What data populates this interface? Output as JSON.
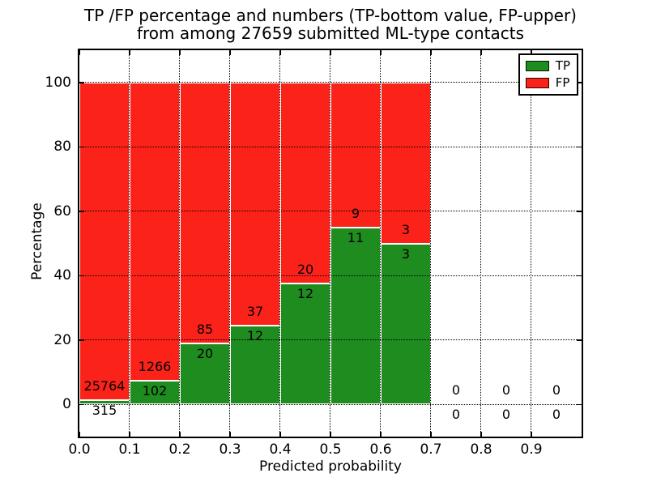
{
  "title": {
    "line1": "TP /FP percentage and numbers (TP-bottom value, FP-upper)",
    "line2": "from among 27659 submitted ML-type contacts"
  },
  "axes": {
    "xlabel": "Predicted probability",
    "ylabel": "Percentage"
  },
  "legend": {
    "position": "upper-right",
    "items": [
      {
        "label": "TP",
        "color": "#1f8c1f"
      },
      {
        "label": "FP",
        "color": "#fb2219"
      }
    ]
  },
  "chart_data": {
    "type": "bar",
    "stacked": true,
    "title": "TP /FP percentage and numbers (TP-bottom value, FP-upper) from among 27659 submitted ML-type contacts",
    "xlabel": "Predicted probability",
    "ylabel": "Percentage",
    "xlim": [
      0.0,
      1.0
    ],
    "ylim": [
      -10,
      110
    ],
    "xticks": [
      "0.0",
      "0.1",
      "0.2",
      "0.3",
      "0.4",
      "0.5",
      "0.6",
      "0.7",
      "0.8",
      "0.9"
    ],
    "yticks": [
      0,
      20,
      40,
      60,
      80,
      100
    ],
    "grid": "dotted",
    "total_submitted": 27659,
    "series": [
      {
        "name": "TP",
        "color": "#1f8c1f",
        "position": "bottom"
      },
      {
        "name": "FP",
        "color": "#fb2219",
        "position": "top"
      }
    ],
    "bins": [
      {
        "x_start": 0.0,
        "x_end": 0.1,
        "tp": 315,
        "fp": 25764,
        "tp_percent": 1.21,
        "fp_percent": 98.79
      },
      {
        "x_start": 0.1,
        "x_end": 0.2,
        "tp": 102,
        "fp": 1266,
        "tp_percent": 7.46,
        "fp_percent": 92.54
      },
      {
        "x_start": 0.2,
        "x_end": 0.3,
        "tp": 20,
        "fp": 85,
        "tp_percent": 19.05,
        "fp_percent": 80.95
      },
      {
        "x_start": 0.3,
        "x_end": 0.4,
        "tp": 12,
        "fp": 37,
        "tp_percent": 24.49,
        "fp_percent": 75.51
      },
      {
        "x_start": 0.4,
        "x_end": 0.5,
        "tp": 12,
        "fp": 20,
        "tp_percent": 37.5,
        "fp_percent": 62.5
      },
      {
        "x_start": 0.5,
        "x_end": 0.6,
        "tp": 11,
        "fp": 9,
        "tp_percent": 55.0,
        "fp_percent": 45.0
      },
      {
        "x_start": 0.6,
        "x_end": 0.7,
        "tp": 3,
        "fp": 3,
        "tp_percent": 50.0,
        "fp_percent": 50.0
      },
      {
        "x_start": 0.7,
        "x_end": 0.8,
        "tp": 0,
        "fp": 0,
        "tp_percent": 0,
        "fp_percent": 0
      },
      {
        "x_start": 0.8,
        "x_end": 0.9,
        "tp": 0,
        "fp": 0,
        "tp_percent": 0,
        "fp_percent": 0
      },
      {
        "x_start": 0.9,
        "x_end": 1.0,
        "tp": 0,
        "fp": 0,
        "tp_percent": 0,
        "fp_percent": 0
      }
    ]
  }
}
